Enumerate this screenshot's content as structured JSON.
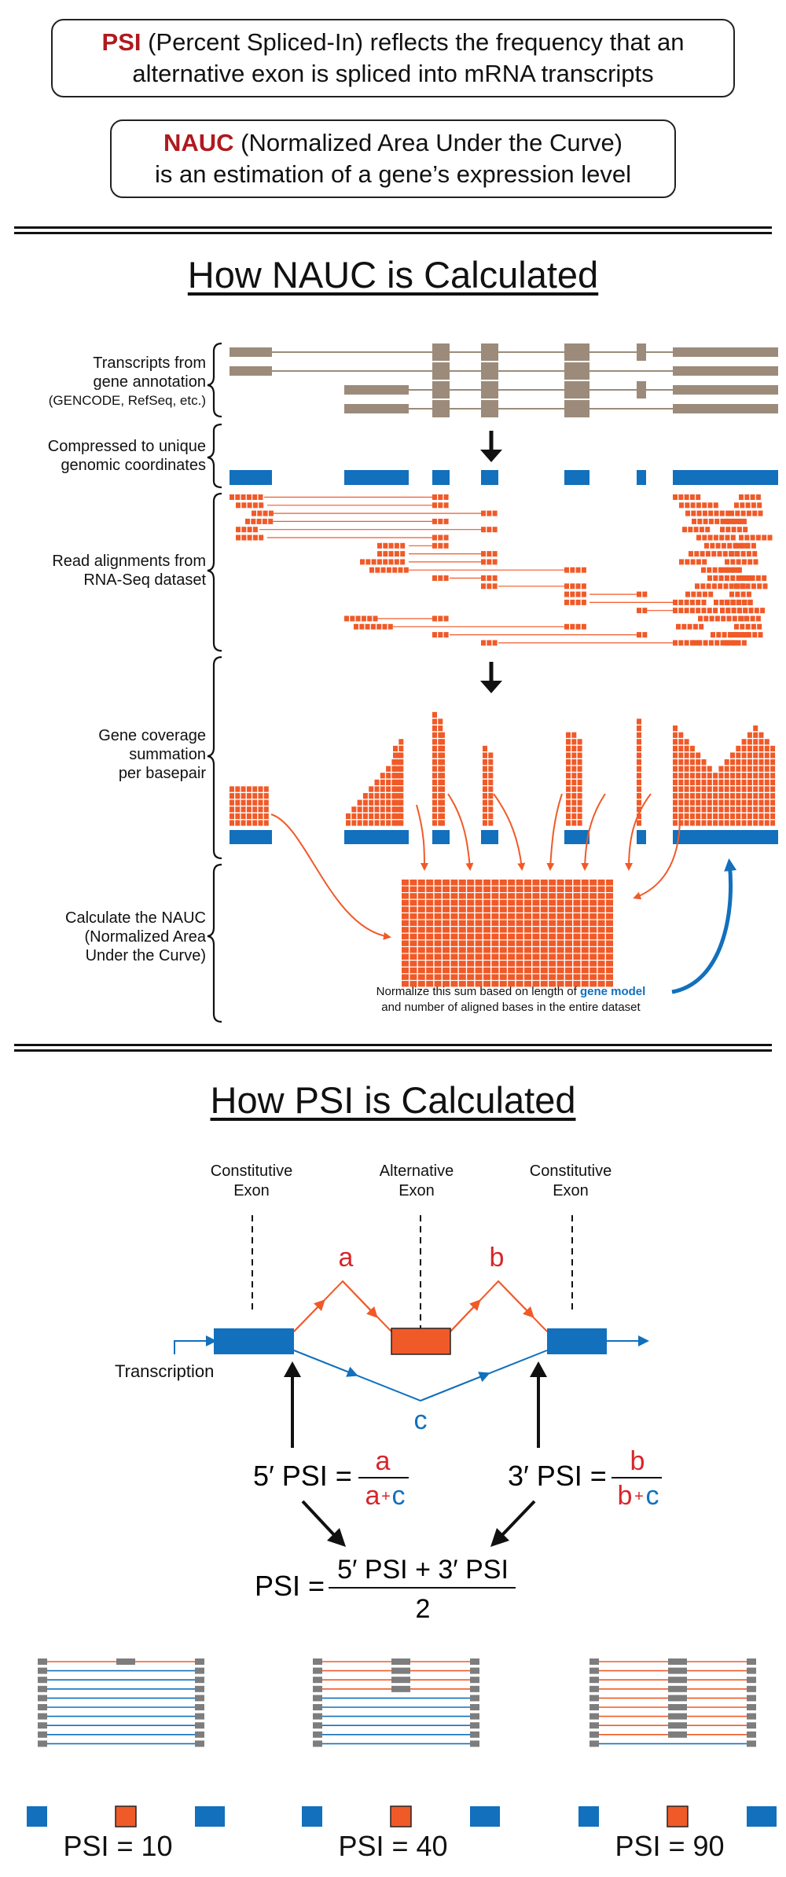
{
  "definitions": {
    "psi": {
      "term": "PSI",
      "rest_line1": " (Percent Spliced-In) reflects the frequency that an",
      "line2": "alternative exon is spliced into mRNA transcripts"
    },
    "nauc": {
      "term": "NAUC",
      "rest_line1": " (Normalized Area Under the Curve)",
      "line2": "is an estimation of a gene’s expression level"
    }
  },
  "nauc_section": {
    "title": "How NAUC is Calculated",
    "steps": [
      {
        "line1": "Transcripts from",
        "line2": "gene annotation",
        "line3": "(GENCODE, RefSeq, etc.)"
      },
      {
        "line1": "Compressed to unique",
        "line2": "genomic coordinates"
      },
      {
        "line1": "Read alignments from",
        "line2": "RNA-Seq dataset"
      },
      {
        "line1": "Gene coverage",
        "line2": "summation",
        "line3": "per basepair"
      },
      {
        "line1": "Calculate the NAUC",
        "line2": "(Normalized Area",
        "line3": "Under the Curve)"
      }
    ],
    "normalize_note": {
      "before": "Normalize this sum based on length of ",
      "highlight": "gene model",
      "line2": "and number of aligned bases in the entire dataset"
    }
  },
  "psi_section": {
    "title": "How PSI is Calculated",
    "exon_labels": [
      {
        "line1": "Constitutive",
        "line2": "Exon"
      },
      {
        "line1": "Alternative",
        "line2": "Exon"
      },
      {
        "line1": "Constitutive",
        "line2": "Exon"
      }
    ],
    "junction_labels": {
      "a": "a",
      "b": "b",
      "c": "c"
    },
    "transcription_label": "Transcription",
    "formula_5": {
      "lhs": "5′ PSI =",
      "num": "a",
      "den_a": "a",
      "den_plus": "+",
      "den_c": "c"
    },
    "formula_3": {
      "lhs": "3′ PSI =",
      "num": "b",
      "den_b": "b",
      "den_plus": "+",
      "den_c": "c"
    },
    "formula_total": {
      "lhs": "PSI =",
      "num": "5′ PSI + 3′ PSI",
      "den": "2"
    },
    "examples": [
      {
        "caption": "PSI = 10",
        "psi": 10
      },
      {
        "caption": "PSI = 40",
        "psi": 40
      },
      {
        "caption": "PSI = 90",
        "psi": 90
      }
    ]
  },
  "colors": {
    "orange": "#f05a28",
    "blue": "#1270bd",
    "taupe": "#9c8b7a",
    "red_text": "#d7262b",
    "grey_block": "#7d7d7d",
    "dark_red_term": "#b0191e"
  }
}
